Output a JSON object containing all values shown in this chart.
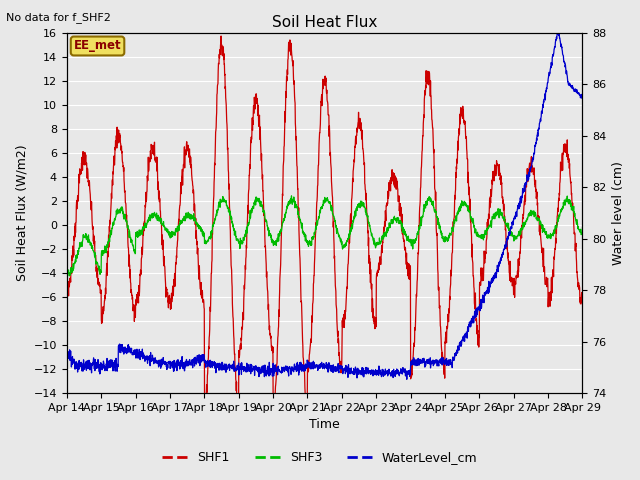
{
  "title": "Soil Heat Flux",
  "no_data_label": "No data for f_SHF2",
  "station_label": "EE_met",
  "ylabel_left": "Soil Heat Flux (W/m2)",
  "ylabel_right": "Water level (cm)",
  "xlabel": "Time",
  "ylim_left": [
    -14,
    16
  ],
  "ylim_right": [
    74,
    88
  ],
  "yticks_left": [
    -14,
    -12,
    -10,
    -8,
    -6,
    -4,
    -2,
    0,
    2,
    4,
    6,
    8,
    10,
    12,
    14,
    16
  ],
  "yticks_right": [
    74,
    76,
    78,
    80,
    82,
    84,
    86,
    88
  ],
  "xtick_labels": [
    "Apr 14",
    "Apr 15",
    "Apr 16",
    "Apr 17",
    "Apr 18",
    "Apr 19",
    "Apr 20",
    "Apr 21",
    "Apr 22",
    "Apr 23",
    "Apr 24",
    "Apr 25",
    "Apr 26",
    "Apr 27",
    "Apr 28",
    "Apr 29"
  ],
  "plot_bg_color": "#e8e8e8",
  "grid_color": "#ffffff",
  "shf1_color": "#cc0000",
  "shf3_color": "#00bb00",
  "water_color": "#0000cc",
  "fig_bg": "#d8d8d8"
}
